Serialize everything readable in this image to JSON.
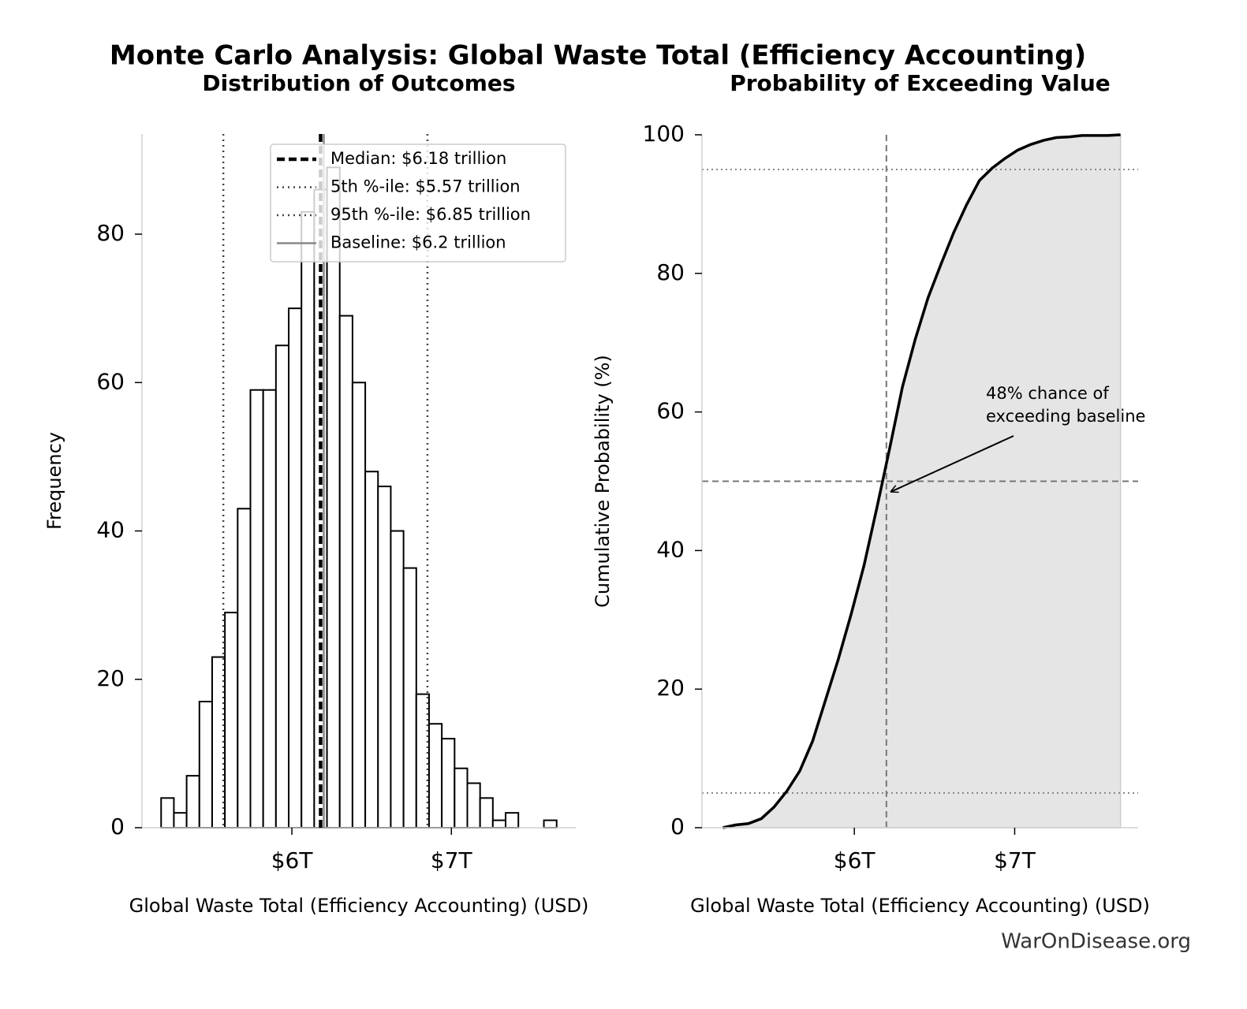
{
  "title": "Monte Carlo Analysis: Global Waste Total (Efficiency Accounting)",
  "footer": "WarOnDisease.org",
  "chart_data": [
    {
      "type": "histogram",
      "title": "Distribution of Outcomes",
      "xlabel": "Global Waste Total (Efficiency Accounting) (USD)",
      "ylabel": "Frequency",
      "bins": [
        5.18,
        5.26,
        5.34,
        5.42,
        5.5,
        5.58,
        5.66,
        5.74,
        5.82,
        5.9,
        5.98,
        6.06,
        6.14,
        6.22,
        6.3,
        6.38,
        6.46,
        6.54,
        6.62,
        6.7,
        6.78,
        6.86,
        6.94,
        7.02,
        7.1,
        7.18,
        7.26,
        7.34,
        7.42,
        7.5,
        7.58,
        7.66
      ],
      "values": [
        4,
        2,
        7,
        17,
        23,
        29,
        43,
        59,
        59,
        65,
        70,
        83,
        86,
        89,
        69,
        60,
        48,
        46,
        40,
        35,
        18,
        14,
        12,
        8,
        6,
        4,
        1,
        2,
        0,
        0,
        1
      ],
      "color": "#ffffff",
      "edgecolor": "#000000",
      "xlim": [
        5.06,
        7.78
      ],
      "ylim": [
        0,
        93.5
      ],
      "xticks": [
        {
          "value": 6,
          "label": "$6T"
        },
        {
          "value": 7,
          "label": "$7T"
        }
      ],
      "yticks": [
        0,
        20,
        40,
        60,
        80
      ],
      "legend": "upper right",
      "reference_lines": [
        {
          "axis": "x",
          "value": 6.18,
          "label": "Median: $6.18 trillion",
          "style": "dashed",
          "color": "#000000"
        },
        {
          "axis": "x",
          "value": 5.57,
          "label": "5th %-ile: $5.57 trillion",
          "style": "dotted",
          "color": "#444444"
        },
        {
          "axis": "x",
          "value": 6.85,
          "label": "95th %-ile: $6.85 trillion",
          "style": "dotted",
          "color": "#444444"
        },
        {
          "axis": "x",
          "value": 6.2,
          "label": "Baseline: $6.2 trillion",
          "style": "solid",
          "color": "#888888"
        }
      ]
    },
    {
      "type": "area",
      "title": "Probability of Exceeding Value",
      "xlabel": "Global Waste Total (Efficiency Accounting) (USD)",
      "ylabel": "Cumulative Probability (%)",
      "x": [
        5.18,
        5.26,
        5.34,
        5.42,
        5.5,
        5.58,
        5.66,
        5.74,
        5.82,
        5.9,
        5.98,
        6.06,
        6.14,
        6.22,
        6.3,
        6.38,
        6.46,
        6.54,
        6.62,
        6.7,
        6.78,
        6.86,
        6.94,
        7.02,
        7.1,
        7.18,
        7.26,
        7.34,
        7.42,
        7.5,
        7.58,
        7.66
      ],
      "values": [
        0,
        0.4,
        0.6,
        1.3,
        3.0,
        5.3,
        8.2,
        12.5,
        18.4,
        24.3,
        30.8,
        37.8,
        46.1,
        54.7,
        63.6,
        70.5,
        76.5,
        81.3,
        85.9,
        89.9,
        93.4,
        95.2,
        96.6,
        97.8,
        98.6,
        99.2,
        99.6,
        99.7,
        99.9,
        99.9,
        99.9,
        100
      ],
      "color": "#000000",
      "fill": "#e5e5e5",
      "xlim": [
        5.05,
        7.77
      ],
      "ylim": [
        0,
        100
      ],
      "xticks": [
        {
          "value": 6,
          "label": "$6T"
        },
        {
          "value": 7,
          "label": "$7T"
        }
      ],
      "yticks": [
        0,
        20,
        40,
        60,
        80,
        100
      ],
      "reference_lines": [
        {
          "axis": "x",
          "value": 6.2,
          "style": "dashed",
          "color": "#777777"
        },
        {
          "axis": "y",
          "value": 50,
          "style": "dashed",
          "color": "#777777"
        },
        {
          "axis": "y",
          "value": 95,
          "style": "dotted",
          "color": "#888888"
        },
        {
          "axis": "y",
          "value": 5,
          "style": "dotted",
          "color": "#888888"
        }
      ],
      "annotation": {
        "lines": [
          "48% chance of",
          "exceeding baseline"
        ],
        "target": [
          6.2,
          48.5
        ]
      }
    }
  ]
}
